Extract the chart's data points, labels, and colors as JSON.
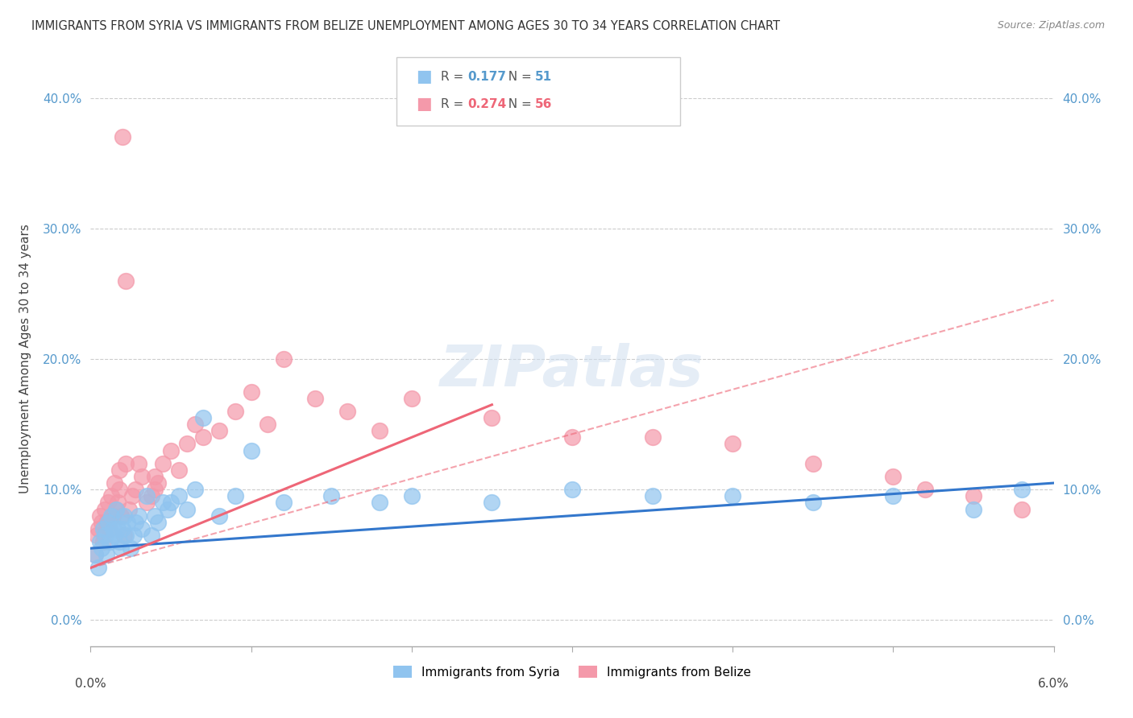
{
  "title": "IMMIGRANTS FROM SYRIA VS IMMIGRANTS FROM BELIZE UNEMPLOYMENT AMONG AGES 30 TO 34 YEARS CORRELATION CHART",
  "source": "Source: ZipAtlas.com",
  "ylabel": "Unemployment Among Ages 30 to 34 years",
  "xlim": [
    0.0,
    6.0
  ],
  "ylim": [
    -2.0,
    42.0
  ],
  "yticks": [
    0.0,
    10.0,
    20.0,
    30.0,
    40.0
  ],
  "xticks": [
    0.0,
    1.0,
    2.0,
    3.0,
    4.0,
    5.0,
    6.0
  ],
  "syria_color": "#90c4ef",
  "belize_color": "#f499aa",
  "syria_line_color": "#3377cc",
  "belize_line_color": "#ee6677",
  "syria_R": 0.177,
  "syria_N": 51,
  "belize_R": 0.274,
  "belize_N": 56,
  "watermark": "ZIPatlas",
  "syria_scatter_x": [
    0.03,
    0.05,
    0.06,
    0.07,
    0.08,
    0.09,
    0.1,
    0.11,
    0.12,
    0.13,
    0.14,
    0.15,
    0.16,
    0.17,
    0.18,
    0.19,
    0.2,
    0.21,
    0.22,
    0.23,
    0.25,
    0.27,
    0.28,
    0.3,
    0.32,
    0.35,
    0.38,
    0.4,
    0.42,
    0.45,
    0.48,
    0.5,
    0.55,
    0.6,
    0.65,
    0.7,
    0.8,
    0.9,
    1.0,
    1.2,
    1.5,
    1.8,
    2.0,
    2.5,
    3.0,
    3.5,
    4.0,
    4.5,
    5.0,
    5.5,
    5.8
  ],
  "syria_scatter_y": [
    5.0,
    4.0,
    6.0,
    5.5,
    7.0,
    6.5,
    5.0,
    7.5,
    6.0,
    8.0,
    7.0,
    6.5,
    8.5,
    7.0,
    6.0,
    5.5,
    7.0,
    8.0,
    6.5,
    7.5,
    5.5,
    6.5,
    7.5,
    8.0,
    7.0,
    9.5,
    6.5,
    8.0,
    7.5,
    9.0,
    8.5,
    9.0,
    9.5,
    8.5,
    10.0,
    15.5,
    8.0,
    9.5,
    13.0,
    9.0,
    9.5,
    9.0,
    9.5,
    9.0,
    10.0,
    9.5,
    9.5,
    9.0,
    9.5,
    8.5,
    10.0
  ],
  "belize_scatter_x": [
    0.03,
    0.04,
    0.05,
    0.06,
    0.07,
    0.08,
    0.09,
    0.1,
    0.11,
    0.12,
    0.13,
    0.14,
    0.15,
    0.16,
    0.17,
    0.18,
    0.19,
    0.2,
    0.21,
    0.22,
    0.24,
    0.26,
    0.28,
    0.3,
    0.32,
    0.35,
    0.38,
    0.4,
    0.42,
    0.45,
    0.5,
    0.55,
    0.6,
    0.65,
    0.7,
    0.8,
    0.9,
    1.0,
    1.1,
    1.2,
    1.4,
    1.6,
    1.8,
    2.0,
    2.5,
    3.0,
    3.5,
    4.0,
    4.5,
    5.0,
    5.2,
    5.5,
    5.8,
    0.18,
    0.22,
    0.4
  ],
  "belize_scatter_y": [
    5.0,
    6.5,
    7.0,
    8.0,
    7.5,
    6.0,
    8.5,
    7.5,
    9.0,
    7.0,
    9.5,
    8.0,
    10.5,
    8.5,
    9.0,
    10.0,
    8.0,
    37.0,
    6.5,
    26.0,
    8.5,
    9.5,
    10.0,
    12.0,
    11.0,
    9.0,
    9.5,
    11.0,
    10.5,
    12.0,
    13.0,
    11.5,
    13.5,
    15.0,
    14.0,
    14.5,
    16.0,
    17.5,
    15.0,
    20.0,
    17.0,
    16.0,
    14.5,
    17.0,
    15.5,
    14.0,
    14.0,
    13.5,
    12.0,
    11.0,
    10.0,
    9.5,
    8.5,
    11.5,
    12.0,
    10.0
  ]
}
